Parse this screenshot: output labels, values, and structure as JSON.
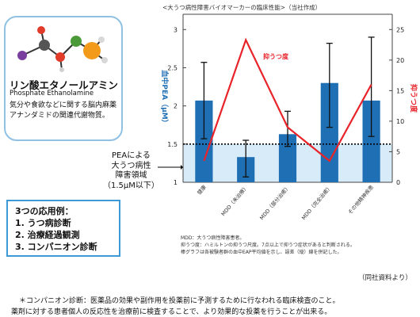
{
  "title": "<大うつ病性障害バイオマーカーの臨床性能>（当社作成）",
  "compound": {
    "name_jp": "リン酸エタノールアミン",
    "name_en": "Phosphate Ethanolamine",
    "description": "気分や食欲などに関する脳内麻薬アナンダミドの関連代謝物質。"
  },
  "applications": {
    "heading": "3つの応用例：",
    "items": [
      "1. うつ病診断",
      "2. 治療経過観測",
      "3. コンパニオン診断"
    ]
  },
  "pea_region_label": [
    "PEAによる",
    "大うつ病性",
    "障害領域",
    "（1.5μM以下）"
  ],
  "notes": [
    "MDD：大うつ病性障害患者。",
    "抑うつ度：ハミルトンの抑うつ尺度。7点以上で抑うつ症状があると判断される。",
    "棒グラフは各被験者群の血中EAP平均値を示し、誤差（縦）線を併記した。"
  ],
  "source": "（同社資料より）",
  "footnote": [
    "＊コンパニオン診断：医薬品の効果や副作用を投薬前に予測するために行なわれる臨床検査のこと。",
    "薬剤に対する患者個人の反応性を治療前に検査することで、より効果的な投薬を行うことが出来る。"
  ],
  "colors": {
    "bar": "#1f6fb5",
    "line": "#e8232a",
    "region": "#d7ecf8",
    "threshold": "#000000"
  },
  "chart_data": {
    "type": "bar",
    "categories": [
      "健康",
      "MDD（未治療）",
      "MDD（部分治癒）",
      "MDD（完全治癒）",
      "その他精神疾患"
    ],
    "series": [
      {
        "values": [
          2.07,
          1.33,
          1.63,
          2.3,
          2.07
        ],
        "error_low": [
          1.57,
          1.07,
          1.47,
          1.72,
          1.6
        ],
        "error_high": [
          2.57,
          1.55,
          1.93,
          2.82,
          2.9
        ]
      },
      {
        "name": "抑うつ度",
        "axis": "right",
        "values": [
          3.5,
          23.3,
          9,
          3.5,
          16
        ]
      }
    ],
    "ylabel_left": "血中PEA（μM）",
    "ylabel_right": "抑うつ度",
    "yticks_left": [
      "1",
      "1.5",
      "2",
      "2.5",
      "3"
    ],
    "yticks_right": [
      "0",
      "5",
      "10",
      "15",
      "20",
      "25"
    ],
    "ylim_left": [
      1,
      3.2
    ],
    "ylim_right": [
      0,
      27.5
    ],
    "threshold": 1.5,
    "grid": false
  }
}
